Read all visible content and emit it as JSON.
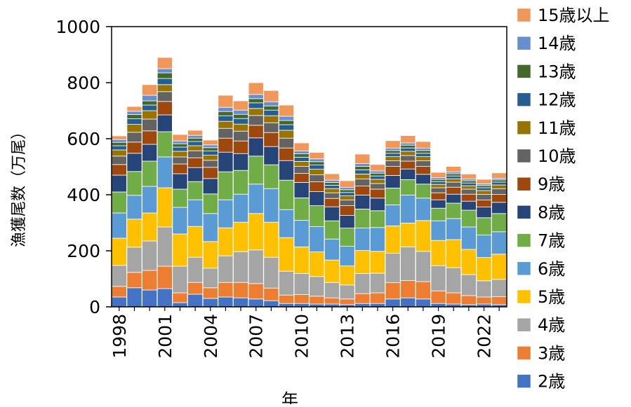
{
  "chart_data": {
    "type": "bar",
    "stacked": true,
    "xlabel": "年",
    "ylabel": "漁獲尾数（万尾）",
    "ylim": [
      0,
      1000
    ],
    "yticks": [
      0,
      200,
      400,
      600,
      800,
      1000
    ],
    "xtick_labels": [
      "1998",
      "2001",
      "2004",
      "2007",
      "2010",
      "2013",
      "2016",
      "2019",
      "2022"
    ],
    "grid": false,
    "legend_position": "right",
    "categories": [
      "1998",
      "1999",
      "2000",
      "2001",
      "2002",
      "2003",
      "2004",
      "2005",
      "2006",
      "2007",
      "2008",
      "2009",
      "2010",
      "2011",
      "2012",
      "2013",
      "2014",
      "2015",
      "2016",
      "2017",
      "2018",
      "2019",
      "2020",
      "2021",
      "2022",
      "2023"
    ],
    "series": [
      {
        "name": "2歳",
        "color": "#4472C4",
        "values": [
          35,
          68,
          60,
          65,
          15,
          45,
          30,
          35,
          32,
          28,
          22,
          12,
          12,
          10,
          10,
          8,
          12,
          12,
          28,
          32,
          28,
          12,
          10,
          8,
          10,
          8
        ]
      },
      {
        "name": "3歳",
        "color": "#ED7D31",
        "values": [
          38,
          55,
          70,
          80,
          35,
          42,
          38,
          52,
          55,
          55,
          45,
          30,
          32,
          28,
          22,
          20,
          35,
          38,
          58,
          62,
          62,
          45,
          40,
          32,
          25,
          28
        ]
      },
      {
        "name": "4歳",
        "color": "#A5A5A5",
        "values": [
          75,
          90,
          105,
          140,
          95,
          90,
          70,
          95,
          110,
          120,
          110,
          85,
          75,
          70,
          55,
          50,
          72,
          70,
          105,
          120,
          108,
          90,
          90,
          75,
          58,
          62
        ]
      },
      {
        "name": "5歳",
        "color": "#FFC000",
        "values": [
          97,
          100,
          100,
          140,
          115,
          110,
          95,
          100,
          105,
          130,
          125,
          120,
          95,
          88,
          80,
          68,
          82,
          78,
          98,
          85,
          110,
          90,
          100,
          90,
          83,
          90
        ]
      },
      {
        "name": "6歳",
        "color": "#5B9BD5",
        "values": [
          90,
          85,
          95,
          110,
          95,
          95,
          100,
          100,
          100,
          105,
          120,
          100,
          95,
          90,
          75,
          70,
          80,
          85,
          75,
          100,
          80,
          70,
          75,
          80,
          80,
          80
        ]
      },
      {
        "name": "7歳",
        "color": "#70AD47",
        "values": [
          75,
          85,
          90,
          90,
          65,
          65,
          70,
          100,
          85,
          100,
          85,
          105,
          80,
          75,
          65,
          65,
          68,
          60,
          60,
          55,
          50,
          45,
          55,
          60,
          62,
          65
        ]
      },
      {
        "name": "8歳",
        "color": "#264478",
        "values": [
          60,
          65,
          60,
          60,
          55,
          50,
          55,
          70,
          60,
          65,
          65,
          70,
          55,
          50,
          50,
          45,
          50,
          45,
          45,
          38,
          35,
          30,
          32,
          32,
          38,
          40
        ]
      },
      {
        "name": "9歳",
        "color": "#9E480E",
        "values": [
          38,
          40,
          48,
          48,
          35,
          35,
          40,
          50,
          45,
          45,
          50,
          45,
          32,
          35,
          30,
          35,
          32,
          32,
          32,
          28,
          28,
          25,
          25,
          25,
          25,
          28
        ]
      },
      {
        "name": "10歳",
        "color": "#636363",
        "values": [
          30,
          35,
          42,
          35,
          25,
          25,
          25,
          35,
          35,
          35,
          35,
          35,
          25,
          25,
          20,
          20,
          25,
          20,
          20,
          20,
          20,
          18,
          18,
          18,
          20,
          20
        ]
      },
      {
        "name": "11歳",
        "color": "#997300",
        "values": [
          22,
          28,
          30,
          25,
          20,
          18,
          18,
          25,
          25,
          25,
          25,
          28,
          18,
          20,
          15,
          15,
          18,
          15,
          15,
          15,
          15,
          12,
          12,
          12,
          14,
          14
        ]
      },
      {
        "name": "12歳",
        "color": "#255E91",
        "values": [
          15,
          20,
          20,
          22,
          15,
          15,
          15,
          20,
          20,
          20,
          20,
          20,
          15,
          15,
          12,
          12,
          15,
          12,
          12,
          12,
          12,
          10,
          10,
          10,
          10,
          10
        ]
      },
      {
        "name": "13歳",
        "color": "#43682B",
        "values": [
          12,
          15,
          15,
          20,
          12,
          12,
          12,
          15,
          15,
          15,
          15,
          15,
          12,
          12,
          10,
          10,
          12,
          10,
          10,
          10,
          10,
          8,
          8,
          8,
          8,
          8
        ]
      },
      {
        "name": "14歳",
        "color": "#698ED0",
        "values": [
          10,
          12,
          20,
          15,
          10,
          10,
          10,
          15,
          15,
          15,
          15,
          15,
          10,
          10,
          8,
          8,
          10,
          8,
          8,
          8,
          8,
          6,
          6,
          6,
          6,
          6
        ]
      },
      {
        "name": "15歳以上",
        "color": "#F1975A",
        "values": [
          13,
          17,
          38,
          40,
          23,
          18,
          17,
          43,
          33,
          42,
          40,
          40,
          29,
          23,
          23,
          24,
          34,
          23,
          27,
          26,
          24,
          19,
          20,
          18,
          16,
          19
        ]
      }
    ]
  }
}
